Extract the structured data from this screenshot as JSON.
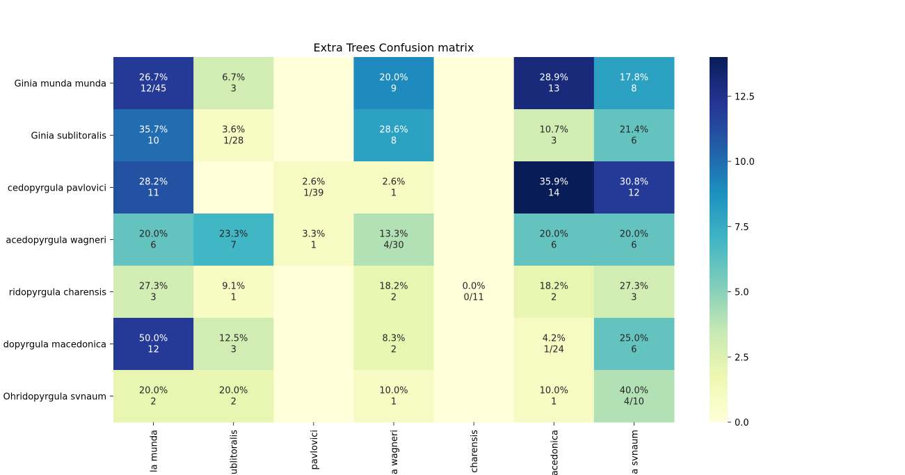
{
  "chart_data": {
    "type": "heatmap",
    "title": "Extra Trees Confusion matrix",
    "xlabel": "",
    "ylabel": "",
    "y_tick_labels": [
      "Ginia munda munda",
      "Ginia sublitoralis",
      "cedopyrgula pavlovici",
      "acedopyrgula wagneri",
      "ridopyrgula charensis",
      "dopyrgula macedonica",
      "Ohridopyrgula svnaum"
    ],
    "x_tick_labels": [
      "la munda",
      "ublitoralis",
      "pavlovici",
      "a wagneri",
      "charensis",
      "acedonica",
      "a svnaum"
    ],
    "values": [
      [
        12,
        3,
        0,
        9,
        0,
        13,
        8
      ],
      [
        10,
        1,
        0,
        8,
        0,
        3,
        6
      ],
      [
        11,
        0,
        1,
        1,
        0,
        14,
        12
      ],
      [
        6,
        7,
        1,
        4,
        0,
        6,
        6
      ],
      [
        3,
        1,
        0,
        2,
        0,
        2,
        3
      ],
      [
        12,
        3,
        0,
        2,
        0,
        1,
        6
      ],
      [
        2,
        2,
        0,
        1,
        0,
        1,
        4
      ]
    ],
    "annotations": [
      [
        [
          "26.7%",
          "12/45"
        ],
        [
          "6.7%",
          "3"
        ],
        [
          "",
          ""
        ],
        [
          "20.0%",
          "9"
        ],
        [
          "",
          ""
        ],
        [
          "28.9%",
          "13"
        ],
        [
          "17.8%",
          "8"
        ]
      ],
      [
        [
          "35.7%",
          "10"
        ],
        [
          "3.6%",
          "1/28"
        ],
        [
          "",
          ""
        ],
        [
          "28.6%",
          "8"
        ],
        [
          "",
          ""
        ],
        [
          "10.7%",
          "3"
        ],
        [
          "21.4%",
          "6"
        ]
      ],
      [
        [
          "28.2%",
          "11"
        ],
        [
          "",
          ""
        ],
        [
          "2.6%",
          "1/39"
        ],
        [
          "2.6%",
          "1"
        ],
        [
          "",
          ""
        ],
        [
          "35.9%",
          "14"
        ],
        [
          "30.8%",
          "12"
        ]
      ],
      [
        [
          "20.0%",
          "6"
        ],
        [
          "23.3%",
          "7"
        ],
        [
          "3.3%",
          "1"
        ],
        [
          "13.3%",
          "4/30"
        ],
        [
          "",
          ""
        ],
        [
          "20.0%",
          "6"
        ],
        [
          "20.0%",
          "6"
        ]
      ],
      [
        [
          "27.3%",
          "3"
        ],
        [
          "9.1%",
          "1"
        ],
        [
          "",
          ""
        ],
        [
          "18.2%",
          "2"
        ],
        [
          "0.0%",
          "0/11"
        ],
        [
          "18.2%",
          "2"
        ],
        [
          "27.3%",
          "3"
        ]
      ],
      [
        [
          "50.0%",
          "12"
        ],
        [
          "12.5%",
          "3"
        ],
        [
          "",
          ""
        ],
        [
          "8.3%",
          "2"
        ],
        [
          "",
          ""
        ],
        [
          "4.2%",
          "1/24"
        ],
        [
          "25.0%",
          "6"
        ]
      ],
      [
        [
          "20.0%",
          "2"
        ],
        [
          "20.0%",
          "2"
        ],
        [
          "",
          ""
        ],
        [
          "10.0%",
          "1"
        ],
        [
          "",
          ""
        ],
        [
          "10.0%",
          "1"
        ],
        [
          "40.0%",
          "4/10"
        ]
      ]
    ],
    "colorbar": {
      "vmin": 0,
      "vmax": 14,
      "ticks": [
        0.0,
        2.5,
        5.0,
        7.5,
        10.0,
        12.5
      ],
      "tick_labels": [
        "0.0",
        "2.5",
        "5.0",
        "7.5",
        "10.0",
        "12.5"
      ],
      "colormap": "YlGnBu",
      "stops": [
        "#ffffd9",
        "#edf8b1",
        "#c7e9b4",
        "#7fcdbb",
        "#41b6c4",
        "#1d91c0",
        "#225ea8",
        "#253494",
        "#081d58"
      ]
    },
    "grid": false
  }
}
